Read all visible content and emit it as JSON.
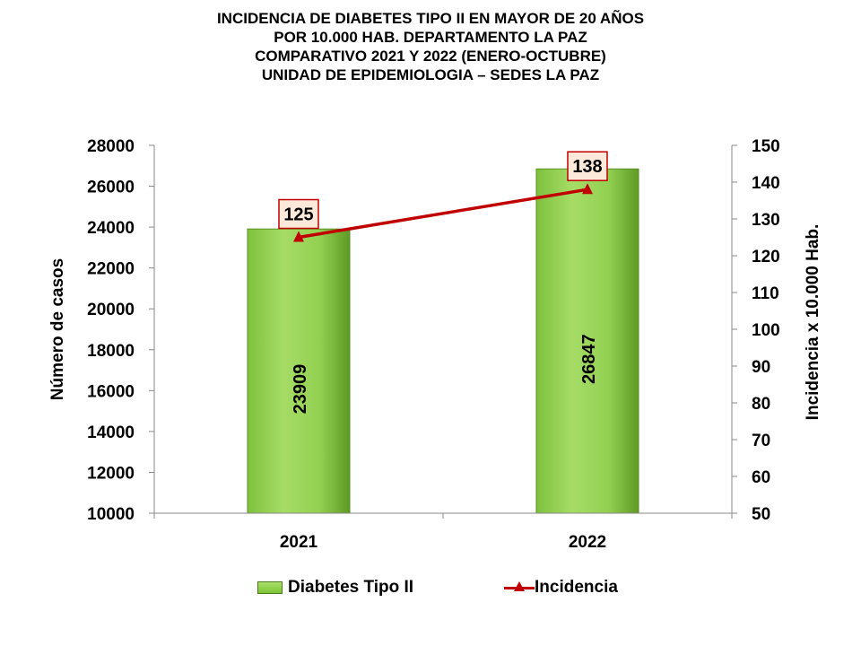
{
  "title_lines": [
    "INCIDENCIA DE DIABETES TIPO II  EN MAYOR DE 20 AÑOS",
    "POR 10.000 HAB. DEPARTAMENTO LA PAZ",
    "COMPARATIVO 2021 Y 2022 (ENERO-OCTUBRE)",
    "UNIDAD DE EPIDEMIOLOGIA – SEDES LA PAZ"
  ],
  "chart_data": {
    "type": "bar",
    "categories": [
      "2021",
      "2022"
    ],
    "series": [
      {
        "name": "Diabetes Tipo II",
        "type": "bar",
        "axis": "left",
        "values": [
          23909,
          26847
        ],
        "color": "#92d050"
      },
      {
        "name": "Incidencia",
        "type": "line",
        "axis": "right",
        "values": [
          125,
          138
        ],
        "color": "#c00000"
      }
    ],
    "ylabel": "Número de casos",
    "ylim": [
      10000,
      28000
    ],
    "yticks": [
      10000,
      12000,
      14000,
      16000,
      18000,
      20000,
      22000,
      24000,
      26000,
      28000
    ],
    "y2label": "Incidencia x 10.000 Hab.",
    "y2lim": [
      50,
      150
    ],
    "y2ticks": [
      50,
      60,
      70,
      80,
      90,
      100,
      110,
      120,
      130,
      140,
      150
    ],
    "grid": false,
    "legend_position": "bottom"
  }
}
